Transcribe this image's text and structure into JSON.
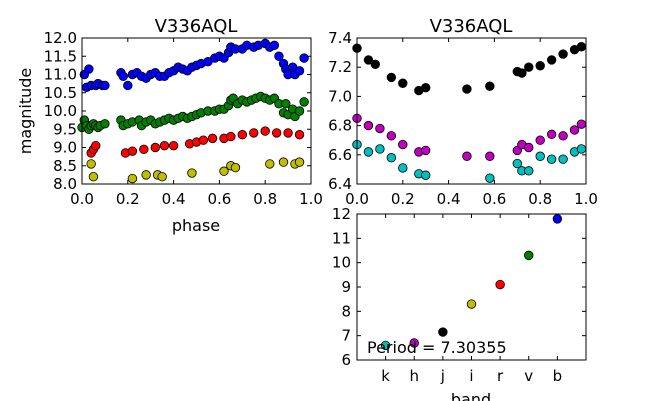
{
  "chart_data": [
    {
      "type": "scatter",
      "title": "V336AQL",
      "xlabel": "phase",
      "ylabel": "magnitude",
      "xlim": [
        0.0,
        1.0
      ],
      "ylim": [
        12.0,
        8.0
      ],
      "y_inverted": true,
      "xticks": [
        "0.0",
        "0.2",
        "0.4",
        "0.6",
        "0.8",
        "1.0"
      ],
      "yticks": [
        "8.0",
        "8.5",
        "9.0",
        "9.5",
        "10.0",
        "10.5",
        "11.0",
        "11.5",
        "12.0"
      ],
      "series": [
        {
          "color": "#bfbf00",
          "points": [
            [
              0.04,
              8.55
            ],
            [
              0.05,
              8.2
            ],
            [
              0.22,
              8.15
            ],
            [
              0.28,
              8.25
            ],
            [
              0.33,
              8.25
            ],
            [
              0.35,
              8.2
            ],
            [
              0.48,
              8.3
            ],
            [
              0.62,
              8.35
            ],
            [
              0.65,
              8.5
            ],
            [
              0.67,
              8.45
            ],
            [
              0.82,
              8.55
            ],
            [
              0.88,
              8.6
            ],
            [
              0.93,
              8.55
            ],
            [
              0.95,
              8.6
            ]
          ]
        },
        {
          "color": "#ff0000",
          "points": [
            [
              0.04,
              8.85
            ],
            [
              0.05,
              8.95
            ],
            [
              0.06,
              9.05
            ],
            [
              0.19,
              8.85
            ],
            [
              0.22,
              8.9
            ],
            [
              0.27,
              8.95
            ],
            [
              0.32,
              9.0
            ],
            [
              0.36,
              9.05
            ],
            [
              0.4,
              9.05
            ],
            [
              0.47,
              9.1
            ],
            [
              0.5,
              9.15
            ],
            [
              0.53,
              9.2
            ],
            [
              0.57,
              9.25
            ],
            [
              0.62,
              9.25
            ],
            [
              0.65,
              9.3
            ],
            [
              0.7,
              9.35
            ],
            [
              0.75,
              9.4
            ],
            [
              0.8,
              9.45
            ],
            [
              0.85,
              9.4
            ],
            [
              0.9,
              9.4
            ],
            [
              0.95,
              9.35
            ]
          ]
        },
        {
          "color": "#008000",
          "points": [
            [
              0.0,
              9.55
            ],
            [
              0.01,
              9.75
            ],
            [
              0.02,
              9.6
            ],
            [
              0.03,
              9.5
            ],
            [
              0.04,
              9.6
            ],
            [
              0.05,
              9.65
            ],
            [
              0.06,
              9.6
            ],
            [
              0.07,
              9.55
            ],
            [
              0.08,
              9.6
            ],
            [
              0.1,
              9.65
            ],
            [
              0.17,
              9.75
            ],
            [
              0.18,
              9.6
            ],
            [
              0.2,
              9.65
            ],
            [
              0.22,
              9.7
            ],
            [
              0.25,
              9.75
            ],
            [
              0.26,
              9.6
            ],
            [
              0.28,
              9.7
            ],
            [
              0.3,
              9.75
            ],
            [
              0.32,
              9.65
            ],
            [
              0.34,
              9.7
            ],
            [
              0.36,
              9.75
            ],
            [
              0.38,
              9.8
            ],
            [
              0.4,
              9.75
            ],
            [
              0.42,
              9.8
            ],
            [
              0.44,
              9.85
            ],
            [
              0.46,
              9.8
            ],
            [
              0.48,
              9.85
            ],
            [
              0.5,
              9.9
            ],
            [
              0.52,
              9.95
            ],
            [
              0.55,
              10.0
            ],
            [
              0.58,
              10.0
            ],
            [
              0.6,
              10.05
            ],
            [
              0.62,
              10.05
            ],
            [
              0.64,
              10.15
            ],
            [
              0.65,
              10.3
            ],
            [
              0.66,
              10.35
            ],
            [
              0.68,
              10.2
            ],
            [
              0.7,
              10.3
            ],
            [
              0.72,
              10.25
            ],
            [
              0.74,
              10.3
            ],
            [
              0.76,
              10.35
            ],
            [
              0.78,
              10.4
            ],
            [
              0.8,
              10.35
            ],
            [
              0.82,
              10.3
            ],
            [
              0.84,
              10.35
            ],
            [
              0.86,
              10.2
            ],
            [
              0.88,
              9.95
            ],
            [
              0.89,
              10.2
            ],
            [
              0.9,
              9.9
            ],
            [
              0.92,
              10.05
            ],
            [
              0.93,
              9.85
            ],
            [
              0.95,
              10.0
            ],
            [
              0.97,
              10.25
            ]
          ]
        },
        {
          "color": "#0000ff",
          "points": [
            [
              0.01,
              11.0
            ],
            [
              0.02,
              10.65
            ],
            [
              0.03,
              11.15
            ],
            [
              0.04,
              10.7
            ],
            [
              0.06,
              10.7
            ],
            [
              0.07,
              10.75
            ],
            [
              0.09,
              10.7
            ],
            [
              0.1,
              10.7
            ],
            [
              0.17,
              11.05
            ],
            [
              0.18,
              10.95
            ],
            [
              0.2,
              10.7
            ],
            [
              0.22,
              11.0
            ],
            [
              0.24,
              11.05
            ],
            [
              0.26,
              10.95
            ],
            [
              0.28,
              10.9
            ],
            [
              0.3,
              11.0
            ],
            [
              0.32,
              11.05
            ],
            [
              0.34,
              10.95
            ],
            [
              0.36,
              10.95
            ],
            [
              0.38,
              11.05
            ],
            [
              0.4,
              11.1
            ],
            [
              0.42,
              11.2
            ],
            [
              0.44,
              11.15
            ],
            [
              0.46,
              11.1
            ],
            [
              0.48,
              11.2
            ],
            [
              0.5,
              11.25
            ],
            [
              0.52,
              11.3
            ],
            [
              0.55,
              11.35
            ],
            [
              0.58,
              11.45
            ],
            [
              0.6,
              11.5
            ],
            [
              0.62,
              11.45
            ],
            [
              0.64,
              11.6
            ],
            [
              0.65,
              11.75
            ],
            [
              0.67,
              11.7
            ],
            [
              0.7,
              11.7
            ],
            [
              0.72,
              11.8
            ],
            [
              0.75,
              11.75
            ],
            [
              0.77,
              11.8
            ],
            [
              0.8,
              11.85
            ],
            [
              0.82,
              11.75
            ],
            [
              0.84,
              11.8
            ],
            [
              0.86,
              11.5
            ],
            [
              0.88,
              11.3
            ],
            [
              0.89,
              11.15
            ],
            [
              0.9,
              11.0
            ],
            [
              0.92,
              11.2
            ],
            [
              0.93,
              11.0
            ],
            [
              0.95,
              11.1
            ],
            [
              0.97,
              11.45
            ]
          ]
        }
      ]
    },
    {
      "type": "scatter",
      "title": "V336AQL",
      "xlabel": "",
      "ylabel": "",
      "xlim": [
        0.0,
        1.0
      ],
      "ylim": [
        7.4,
        6.4
      ],
      "y_inverted": true,
      "xticks": [
        "0.0",
        "0.2",
        "0.4",
        "0.6",
        "0.8",
        "1.0"
      ],
      "yticks": [
        "6.4",
        "6.6",
        "6.8",
        "7.0",
        "7.2",
        "7.4"
      ],
      "series": [
        {
          "color": "#00bfbf",
          "points": [
            [
              0.0,
              6.67
            ],
            [
              0.05,
              6.62
            ],
            [
              0.1,
              6.64
            ],
            [
              0.15,
              6.58
            ],
            [
              0.2,
              6.51
            ],
            [
              0.27,
              6.47
            ],
            [
              0.3,
              6.46
            ],
            [
              0.58,
              6.44
            ],
            [
              0.7,
              6.54
            ],
            [
              0.72,
              6.49
            ],
            [
              0.75,
              6.49
            ],
            [
              0.8,
              6.59
            ],
            [
              0.85,
              6.57
            ],
            [
              0.9,
              6.57
            ],
            [
              0.95,
              6.62
            ],
            [
              0.98,
              6.64
            ]
          ]
        },
        {
          "color": "#bf00bf",
          "points": [
            [
              0.0,
              6.85
            ],
            [
              0.05,
              6.8
            ],
            [
              0.1,
              6.78
            ],
            [
              0.15,
              6.73
            ],
            [
              0.2,
              6.67
            ],
            [
              0.27,
              6.62
            ],
            [
              0.3,
              6.63
            ],
            [
              0.48,
              6.59
            ],
            [
              0.58,
              6.59
            ],
            [
              0.7,
              6.63
            ],
            [
              0.72,
              6.67
            ],
            [
              0.75,
              6.65
            ],
            [
              0.8,
              6.7
            ],
            [
              0.85,
              6.74
            ],
            [
              0.9,
              6.73
            ],
            [
              0.95,
              6.77
            ],
            [
              0.98,
              6.81
            ]
          ]
        },
        {
          "color": "#000000",
          "points": [
            [
              0.0,
              7.33
            ],
            [
              0.05,
              7.25
            ],
            [
              0.08,
              7.22
            ],
            [
              0.15,
              7.13
            ],
            [
              0.2,
              7.09
            ],
            [
              0.27,
              7.04
            ],
            [
              0.3,
              7.06
            ],
            [
              0.48,
              7.05
            ],
            [
              0.58,
              7.07
            ],
            [
              0.7,
              7.17
            ],
            [
              0.72,
              7.16
            ],
            [
              0.75,
              7.2
            ],
            [
              0.8,
              7.21
            ],
            [
              0.85,
              7.25
            ],
            [
              0.9,
              7.29
            ],
            [
              0.95,
              7.32
            ],
            [
              0.98,
              7.34
            ]
          ]
        }
      ]
    },
    {
      "type": "scatter",
      "title": "",
      "xlabel": "band",
      "ylabel": "",
      "ylim": [
        12,
        6
      ],
      "y_inverted": true,
      "categories": [
        "k",
        "h",
        "j",
        "i",
        "r",
        "v",
        "b"
      ],
      "yticks": [
        "6",
        "7",
        "8",
        "9",
        "10",
        "11",
        "12"
      ],
      "annotation": "Period = 7.30355",
      "points": [
        {
          "band": "k",
          "value": 6.6,
          "color": "#00bfbf"
        },
        {
          "band": "h",
          "value": 6.7,
          "color": "#bf00bf"
        },
        {
          "band": "j",
          "value": 7.15,
          "color": "#000000"
        },
        {
          "band": "i",
          "value": 8.3,
          "color": "#bfbf00"
        },
        {
          "band": "r",
          "value": 9.1,
          "color": "#ff0000"
        },
        {
          "band": "v",
          "value": 10.3,
          "color": "#008000"
        },
        {
          "band": "b",
          "value": 11.8,
          "color": "#0000ff"
        }
      ]
    }
  ]
}
